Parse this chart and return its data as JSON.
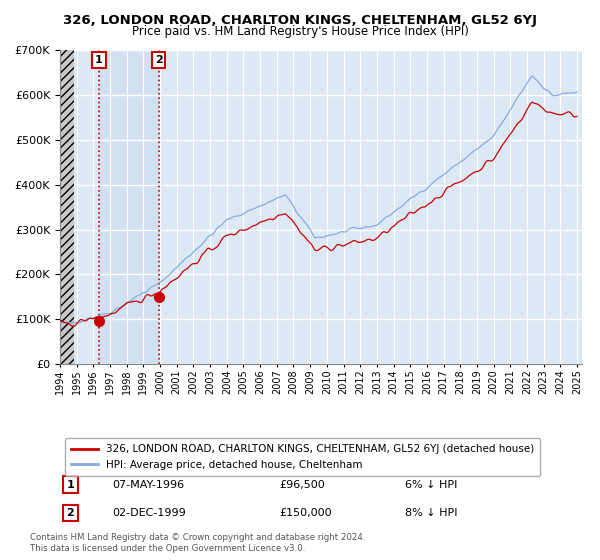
{
  "title": "326, LONDON ROAD, CHARLTON KINGS, CHELTENHAM, GL52 6YJ",
  "subtitle": "Price paid vs. HM Land Registry's House Price Index (HPI)",
  "property_label": "326, LONDON ROAD, CHARLTON KINGS, CHELTENHAM, GL52 6YJ (detached house)",
  "hpi_label": "HPI: Average price, detached house, Cheltenham",
  "sale1_date": "07-MAY-1996",
  "sale1_price": 96500,
  "sale1_pct": "6% ↓ HPI",
  "sale2_date": "02-DEC-1999",
  "sale2_price": 150000,
  "sale2_pct": "8% ↓ HPI",
  "copyright": "Contains HM Land Registry data © Crown copyright and database right 2024.\nThis data is licensed under the Open Government Licence v3.0.",
  "property_color": "#cc0000",
  "hpi_color": "#88aadd",
  "sale_marker_color": "#cc0000",
  "dashed_line_color": "#cc0000",
  "shaded_region_color": "#dce9f5",
  "hatch_region_color": "#cccccc",
  "ylim": [
    0,
    700000
  ],
  "yticks": [
    0,
    100000,
    200000,
    300000,
    400000,
    500000,
    600000,
    700000
  ],
  "ytick_labels": [
    "£0",
    "£100K",
    "£200K",
    "£300K",
    "£400K",
    "£500K",
    "£600K",
    "£700K"
  ],
  "xstart_year": 1994,
  "xend_year": 2025
}
